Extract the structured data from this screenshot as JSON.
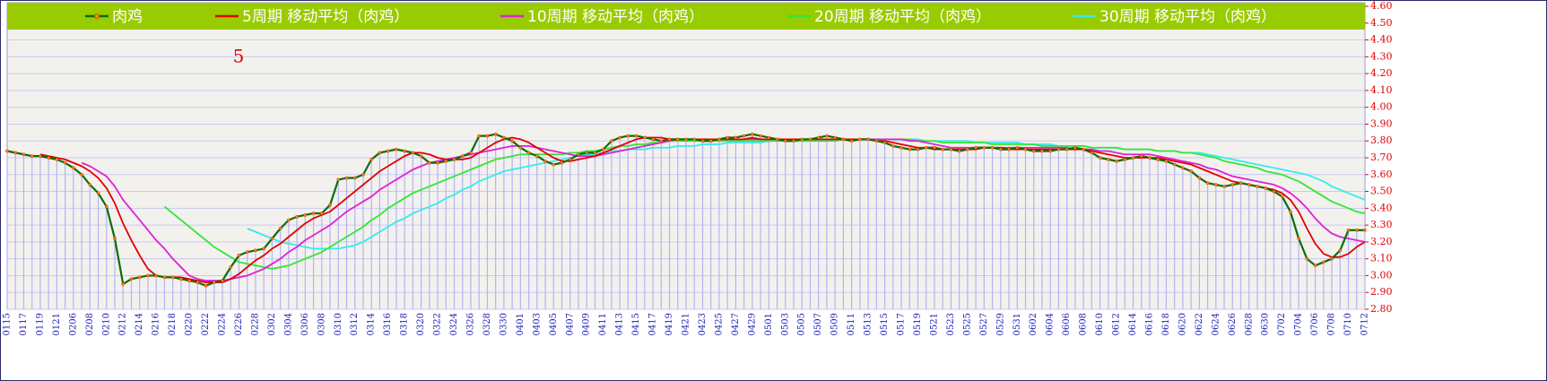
{
  "chart_data": {
    "type": "line",
    "annotation": "5",
    "legend": "top",
    "grid": true,
    "drop_lines": true,
    "ylim": [
      2.8,
      4.6
    ],
    "yticks": [
      {
        "value": 2.8,
        "label": "2.80"
      },
      {
        "value": 2.9,
        "label": "2.90"
      },
      {
        "value": 3.0,
        "label": "3.00"
      },
      {
        "value": 3.1,
        "label": "3.10"
      },
      {
        "value": 3.2,
        "label": "3.20"
      },
      {
        "value": 3.3,
        "label": "3.30"
      },
      {
        "value": 3.4,
        "label": "3.40"
      },
      {
        "value": 3.5,
        "label": "3.50"
      },
      {
        "value": 3.6,
        "label": "3.60"
      },
      {
        "value": 3.7,
        "label": "3.70"
      },
      {
        "value": 3.8,
        "label": "3.80"
      },
      {
        "value": 3.9,
        "label": "3.90"
      },
      {
        "value": 4.0,
        "label": "4.00"
      },
      {
        "value": 4.1,
        "label": "4.10"
      },
      {
        "value": 4.2,
        "label": "4.20"
      },
      {
        "value": 4.3,
        "label": "4.30"
      },
      {
        "value": 4.4,
        "label": "4.40"
      },
      {
        "value": 4.5,
        "label": "4.50"
      },
      {
        "value": 4.6,
        "label": "4.60"
      }
    ],
    "categories": [
      "0115",
      null,
      "0117",
      null,
      "0119",
      null,
      "0121",
      null,
      "0206",
      null,
      "0208",
      null,
      "0210",
      null,
      "0212",
      null,
      "0214",
      null,
      "0216",
      null,
      "0218",
      null,
      "0220",
      null,
      "0222",
      null,
      "0224",
      null,
      "0226",
      null,
      "0228",
      null,
      "0302",
      null,
      "0304",
      null,
      "0306",
      null,
      "0308",
      null,
      "0310",
      null,
      "0312",
      null,
      "0314",
      null,
      "0316",
      null,
      "0318",
      null,
      "0320",
      null,
      "0322",
      null,
      "0324",
      null,
      "0326",
      null,
      "0328",
      null,
      "0330",
      null,
      "0401",
      null,
      "0403",
      null,
      "0405",
      null,
      "0407",
      null,
      "0409",
      null,
      "0411",
      null,
      "0413",
      null,
      "0415",
      null,
      "0417",
      null,
      "0419",
      null,
      "0421",
      null,
      "0423",
      null,
      "0425",
      null,
      "0427",
      null,
      "0429",
      null,
      "0501",
      null,
      "0503",
      null,
      "0505",
      null,
      "0507",
      null,
      "0509",
      null,
      "0511",
      null,
      "0513",
      null,
      "0515",
      null,
      "0517",
      null,
      "0519",
      null,
      "0521",
      null,
      "0523",
      null,
      "0525",
      null,
      "0527",
      null,
      "0529",
      null,
      "0531",
      null,
      "0602",
      null,
      "0604",
      null,
      "0606",
      null,
      "0608",
      null,
      "0610",
      null,
      "0612",
      null,
      "0614",
      null,
      "0616",
      null,
      "0618",
      null,
      "0620",
      null,
      "0622",
      null,
      "0624",
      null,
      "0626",
      null,
      "0628",
      null,
      "0630",
      null,
      "0702",
      null,
      "0704",
      null,
      "0706",
      null,
      "0708",
      null,
      "0710",
      null,
      "0712"
    ],
    "series": [
      {
        "name": "肉鸡",
        "color": "#0a6e0a",
        "marker_color": "#ff8c00",
        "values": [
          3.74,
          3.73,
          3.72,
          3.71,
          3.71,
          3.7,
          3.69,
          3.67,
          3.64,
          3.6,
          3.54,
          3.49,
          3.41,
          3.22,
          2.95,
          2.98,
          2.99,
          3.0,
          3.0,
          2.99,
          2.99,
          2.98,
          2.97,
          2.96,
          2.94,
          2.96,
          2.97,
          3.05,
          3.12,
          3.14,
          3.15,
          3.16,
          3.22,
          3.28,
          3.33,
          3.35,
          3.36,
          3.37,
          3.37,
          3.42,
          3.57,
          3.58,
          3.58,
          3.6,
          3.69,
          3.73,
          3.74,
          3.75,
          3.74,
          3.73,
          3.71,
          3.67,
          3.67,
          3.68,
          3.69,
          3.71,
          3.73,
          3.83,
          3.83,
          3.84,
          3.82,
          3.8,
          3.76,
          3.73,
          3.71,
          3.68,
          3.66,
          3.67,
          3.69,
          3.72,
          3.73,
          3.73,
          3.75,
          3.8,
          3.82,
          3.83,
          3.83,
          3.82,
          3.81,
          3.8,
          3.81,
          3.81,
          3.81,
          3.81,
          3.8,
          3.8,
          3.81,
          3.82,
          3.82,
          3.83,
          3.84,
          3.83,
          3.82,
          3.81,
          3.8,
          3.8,
          3.81,
          3.81,
          3.82,
          3.83,
          3.82,
          3.81,
          3.8,
          3.81,
          3.81,
          3.8,
          3.79,
          3.77,
          3.76,
          3.75,
          3.75,
          3.76,
          3.76,
          3.75,
          3.75,
          3.74,
          3.75,
          3.76,
          3.76,
          3.76,
          3.75,
          3.75,
          3.76,
          3.75,
          3.74,
          3.74,
          3.74,
          3.75,
          3.75,
          3.76,
          3.75,
          3.73,
          3.7,
          3.69,
          3.68,
          3.69,
          3.7,
          3.71,
          3.7,
          3.69,
          3.68,
          3.66,
          3.64,
          3.62,
          3.58,
          3.55,
          3.54,
          3.53,
          3.54,
          3.55,
          3.54,
          3.53,
          3.52,
          3.5,
          3.47,
          3.38,
          3.22,
          3.1,
          3.06,
          3.08,
          3.1,
          3.15,
          3.27,
          3.27,
          3.27
        ]
      },
      {
        "name": "5周期 移动平均（肉鸡）",
        "color": "#e00000",
        "values": [
          null,
          null,
          null,
          null,
          3.72,
          3.71,
          3.7,
          3.69,
          3.67,
          3.65,
          3.62,
          3.58,
          3.52,
          3.43,
          3.31,
          3.21,
          3.12,
          3.04,
          3.0,
          2.99,
          2.99,
          2.99,
          2.98,
          2.97,
          2.96,
          2.96,
          2.96,
          2.98,
          3.01,
          3.05,
          3.09,
          3.12,
          3.16,
          3.19,
          3.23,
          3.27,
          3.31,
          3.34,
          3.36,
          3.38,
          3.42,
          3.46,
          3.5,
          3.54,
          3.58,
          3.62,
          3.65,
          3.68,
          3.71,
          3.73,
          3.73,
          3.72,
          3.7,
          3.69,
          3.69,
          3.69,
          3.7,
          3.73,
          3.76,
          3.79,
          3.81,
          3.82,
          3.81,
          3.79,
          3.76,
          3.73,
          3.7,
          3.68,
          3.68,
          3.69,
          3.7,
          3.71,
          3.73,
          3.75,
          3.77,
          3.79,
          3.81,
          3.82,
          3.82,
          3.82,
          3.81,
          3.81,
          3.81,
          3.81,
          3.81,
          3.81,
          3.81,
          3.81,
          3.81,
          3.81,
          3.82,
          3.81,
          3.81,
          3.81,
          3.81,
          3.81,
          3.81,
          3.81,
          3.81,
          3.81,
          3.81,
          3.81,
          3.81,
          3.81,
          3.81,
          3.8,
          3.8,
          3.79,
          3.78,
          3.77,
          3.76,
          3.76,
          3.75,
          3.75,
          3.75,
          3.75,
          3.75,
          3.75,
          3.76,
          3.76,
          3.76,
          3.75,
          3.75,
          3.75,
          3.75,
          3.75,
          3.75,
          3.75,
          3.75,
          3.75,
          3.75,
          3.74,
          3.73,
          3.72,
          3.71,
          3.7,
          3.7,
          3.7,
          3.7,
          3.7,
          3.69,
          3.68,
          3.67,
          3.66,
          3.64,
          3.62,
          3.6,
          3.58,
          3.56,
          3.55,
          3.54,
          3.53,
          3.52,
          3.51,
          3.49,
          3.45,
          3.38,
          3.28,
          3.19,
          3.13,
          3.11,
          3.11,
          3.13,
          3.17,
          3.2
        ]
      },
      {
        "name": "10周期 移动平均（肉鸡）",
        "color": "#e020d8",
        "values": [
          null,
          null,
          null,
          null,
          null,
          null,
          null,
          null,
          null,
          3.67,
          3.65,
          3.62,
          3.59,
          3.53,
          3.45,
          3.39,
          3.33,
          3.27,
          3.21,
          3.16,
          3.1,
          3.05,
          3.0,
          2.98,
          2.97,
          2.97,
          2.97,
          2.98,
          2.99,
          3.0,
          3.02,
          3.04,
          3.07,
          3.1,
          3.14,
          3.17,
          3.21,
          3.24,
          3.27,
          3.3,
          3.34,
          3.38,
          3.41,
          3.44,
          3.47,
          3.51,
          3.54,
          3.57,
          3.6,
          3.63,
          3.65,
          3.67,
          3.68,
          3.69,
          3.7,
          3.71,
          3.72,
          3.73,
          3.74,
          3.75,
          3.76,
          3.77,
          3.77,
          3.77,
          3.76,
          3.75,
          3.74,
          3.73,
          3.72,
          3.71,
          3.71,
          3.71,
          3.72,
          3.73,
          3.74,
          3.75,
          3.76,
          3.77,
          3.78,
          3.79,
          3.8,
          3.81,
          3.81,
          3.81,
          3.81,
          3.81,
          3.81,
          3.81,
          3.81,
          3.81,
          3.81,
          3.81,
          3.81,
          3.81,
          3.81,
          3.81,
          3.81,
          3.81,
          3.81,
          3.81,
          3.81,
          3.81,
          3.81,
          3.81,
          3.81,
          3.81,
          3.81,
          3.81,
          3.81,
          3.8,
          3.8,
          3.79,
          3.78,
          3.77,
          3.76,
          3.76,
          3.76,
          3.76,
          3.76,
          3.76,
          3.76,
          3.76,
          3.76,
          3.76,
          3.76,
          3.76,
          3.76,
          3.76,
          3.76,
          3.75,
          3.75,
          3.75,
          3.74,
          3.74,
          3.73,
          3.72,
          3.72,
          3.72,
          3.72,
          3.71,
          3.7,
          3.69,
          3.68,
          3.67,
          3.66,
          3.64,
          3.63,
          3.61,
          3.59,
          3.58,
          3.57,
          3.56,
          3.55,
          3.54,
          3.52,
          3.49,
          3.45,
          3.4,
          3.34,
          3.29,
          3.25,
          3.23,
          3.22,
          3.21,
          3.2
        ]
      },
      {
        "name": "20周期 移动平均（肉鸡）",
        "color": "#33e633",
        "values": [
          null,
          null,
          null,
          null,
          null,
          null,
          null,
          null,
          null,
          null,
          null,
          null,
          null,
          null,
          null,
          null,
          null,
          null,
          null,
          3.41,
          3.37,
          3.33,
          3.29,
          3.25,
          3.21,
          3.17,
          3.14,
          3.11,
          3.08,
          3.07,
          3.06,
          3.05,
          3.04,
          3.05,
          3.06,
          3.08,
          3.1,
          3.12,
          3.14,
          3.17,
          3.2,
          3.23,
          3.26,
          3.29,
          3.33,
          3.36,
          3.4,
          3.43,
          3.46,
          3.49,
          3.51,
          3.53,
          3.55,
          3.57,
          3.59,
          3.61,
          3.63,
          3.65,
          3.67,
          3.69,
          3.7,
          3.71,
          3.72,
          3.72,
          3.72,
          3.72,
          3.72,
          3.72,
          3.73,
          3.73,
          3.74,
          3.74,
          3.75,
          3.76,
          3.77,
          3.77,
          3.78,
          3.78,
          3.79,
          3.79,
          3.8,
          3.8,
          3.8,
          3.8,
          3.8,
          3.8,
          3.8,
          3.8,
          3.8,
          3.8,
          3.8,
          3.8,
          3.8,
          3.8,
          3.8,
          3.8,
          3.8,
          3.8,
          3.8,
          3.8,
          3.8,
          3.81,
          3.81,
          3.81,
          3.81,
          3.81,
          3.81,
          3.81,
          3.81,
          3.81,
          3.8,
          3.8,
          3.8,
          3.79,
          3.79,
          3.79,
          3.79,
          3.79,
          3.79,
          3.78,
          3.78,
          3.78,
          3.78,
          3.78,
          3.78,
          3.77,
          3.77,
          3.77,
          3.77,
          3.77,
          3.77,
          3.76,
          3.76,
          3.76,
          3.76,
          3.75,
          3.75,
          3.75,
          3.75,
          3.74,
          3.74,
          3.74,
          3.73,
          3.73,
          3.72,
          3.71,
          3.7,
          3.68,
          3.67,
          3.66,
          3.65,
          3.64,
          3.62,
          3.61,
          3.6,
          3.58,
          3.56,
          3.53,
          3.5,
          3.47,
          3.44,
          3.42,
          3.4,
          3.38,
          3.37
        ]
      },
      {
        "name": "30周期 移动平均（肉鸡）",
        "color": "#33ecec",
        "values": [
          null,
          null,
          null,
          null,
          null,
          null,
          null,
          null,
          null,
          null,
          null,
          null,
          null,
          null,
          null,
          null,
          null,
          null,
          null,
          null,
          null,
          null,
          null,
          null,
          null,
          null,
          null,
          null,
          null,
          3.28,
          3.26,
          3.24,
          3.22,
          3.2,
          3.19,
          3.18,
          3.17,
          3.16,
          3.16,
          3.16,
          3.16,
          3.17,
          3.18,
          3.2,
          3.23,
          3.26,
          3.29,
          3.32,
          3.34,
          3.37,
          3.39,
          3.41,
          3.43,
          3.46,
          3.48,
          3.51,
          3.53,
          3.56,
          3.58,
          3.6,
          3.62,
          3.63,
          3.64,
          3.65,
          3.66,
          3.67,
          3.68,
          3.69,
          3.7,
          3.71,
          3.72,
          3.72,
          3.73,
          3.74,
          3.74,
          3.75,
          3.75,
          3.75,
          3.76,
          3.76,
          3.76,
          3.77,
          3.77,
          3.77,
          3.78,
          3.78,
          3.78,
          3.79,
          3.79,
          3.79,
          3.79,
          3.79,
          3.8,
          3.8,
          3.8,
          3.8,
          3.8,
          3.8,
          3.8,
          3.8,
          3.81,
          3.81,
          3.81,
          3.81,
          3.81,
          3.81,
          3.81,
          3.81,
          3.81,
          3.81,
          3.81,
          3.8,
          3.8,
          3.8,
          3.8,
          3.8,
          3.8,
          3.79,
          3.79,
          3.79,
          3.79,
          3.79,
          3.79,
          3.78,
          3.78,
          3.78,
          3.78,
          3.77,
          3.77,
          3.77,
          3.77,
          3.76,
          3.76,
          3.76,
          3.76,
          3.75,
          3.75,
          3.75,
          3.75,
          3.74,
          3.74,
          3.74,
          3.73,
          3.73,
          3.73,
          3.72,
          3.71,
          3.7,
          3.69,
          3.68,
          3.67,
          3.66,
          3.65,
          3.64,
          3.63,
          3.62,
          3.61,
          3.6,
          3.58,
          3.56,
          3.53,
          3.51,
          3.49,
          3.47,
          3.45
        ]
      }
    ]
  }
}
